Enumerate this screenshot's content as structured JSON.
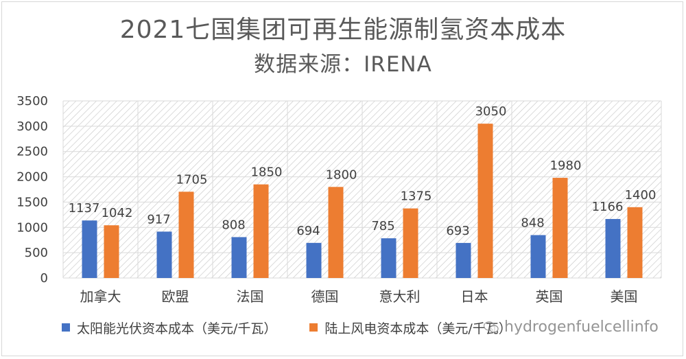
{
  "title": "2021七国集团可再生能源制氢资本成本",
  "subtitle": "数据来源：IRENA",
  "watermark": "hydrogenfuelcellinfo",
  "colors": {
    "solar": "#4472C4",
    "wind": "#ED7D31",
    "grid": "#d9d9d9",
    "hatch": "#c8c8c8"
  },
  "chart_data": {
    "type": "bar",
    "categories": [
      "加拿大",
      "欧盟",
      "法国",
      "德国",
      "意大利",
      "日本",
      "英国",
      "美国"
    ],
    "series": [
      {
        "name": "太阳能光伏资本成本（美元/千瓦）",
        "values": [
          1137,
          917,
          808,
          694,
          785,
          693,
          848,
          1166
        ]
      },
      {
        "name": "陆上风电资本成本（美元/千瓦）",
        "values": [
          1042,
          1705,
          1850,
          1800,
          1375,
          3050,
          1980,
          1400
        ]
      }
    ],
    "ylim": [
      0,
      3500
    ],
    "yticks": [
      0,
      500,
      1000,
      1500,
      2000,
      2500,
      3000,
      3500
    ],
    "grid": true,
    "legend_position": "bottom"
  }
}
